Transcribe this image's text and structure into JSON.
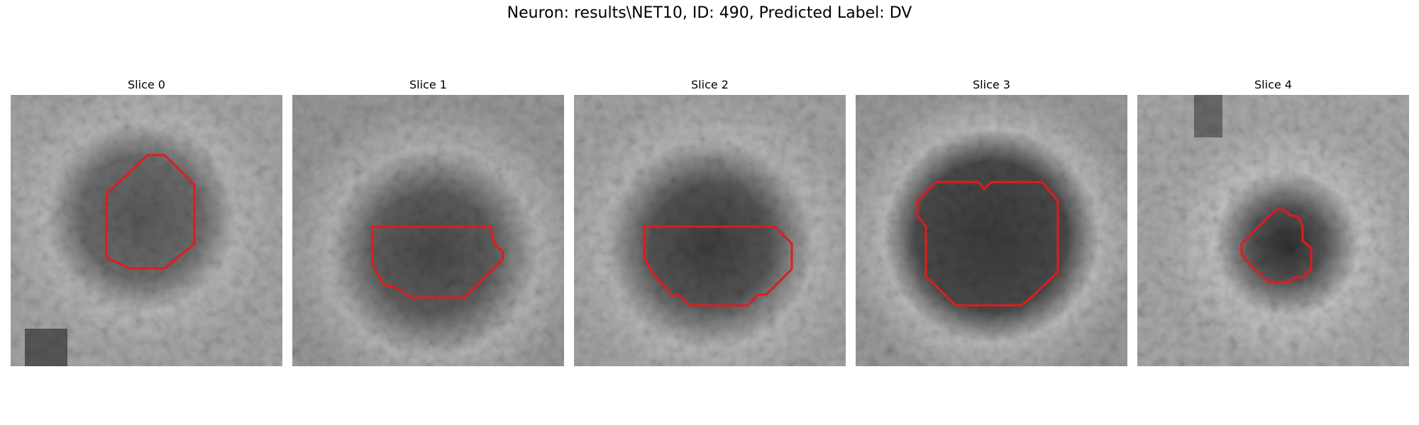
{
  "figure": {
    "title": "Neuron: results\\NET10, ID: 490, Predicted Label: DV"
  },
  "slices": [
    {
      "label": "Slice 0"
    },
    {
      "label": "Slice 1"
    },
    {
      "label": "Slice 2"
    },
    {
      "label": "Slice 3"
    },
    {
      "label": "Slice 4"
    }
  ],
  "colors": {
    "contour": "#e41a1c",
    "background": "#ffffff"
  }
}
